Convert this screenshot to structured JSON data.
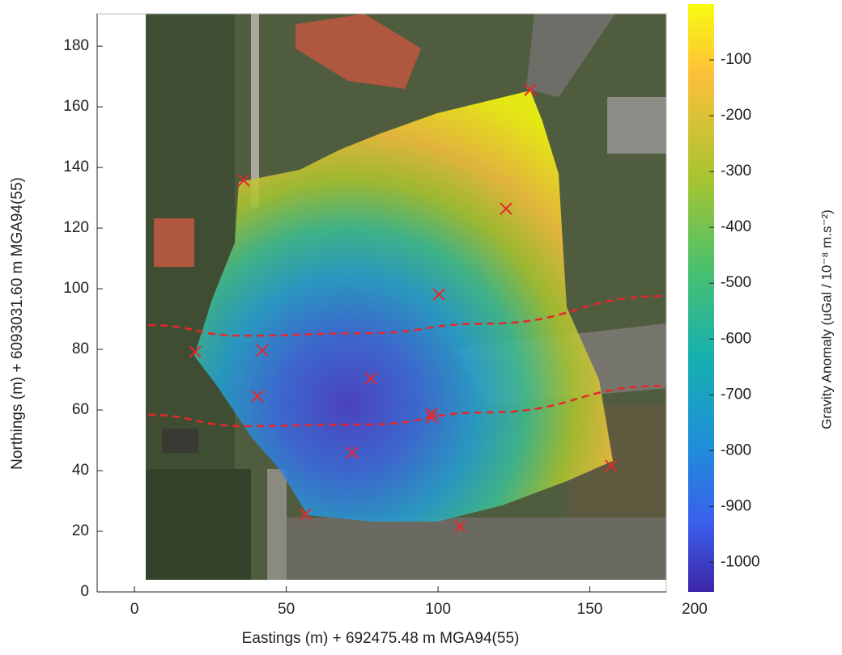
{
  "chart_data": {
    "type": "scatter",
    "xlabel": "Eastings (m) + 692475.48 m MGA94(55)",
    "ylabel": "Northings (m) + 6093031.60 m MGA94(55)",
    "xlim": [
      -12.3,
      175.2
    ],
    "ylim": [
      0,
      190.7
    ],
    "xticks": [
      0,
      50,
      100,
      150,
      200
    ],
    "yticks": [
      0,
      20,
      40,
      60,
      80,
      100,
      120,
      140,
      160,
      180
    ],
    "series": [
      {
        "color": "#e8262b",
        "marker": "x",
        "x": [
          130.4,
          36,
          122.4,
          100.3,
          20,
          42.1,
          77.9,
          40.5,
          97.9,
          97.9,
          71.7,
          157,
          56.3,
          107.2
        ],
        "y": [
          165.6,
          135.7,
          126.4,
          98.1,
          79.2,
          79.7,
          70.4,
          64.5,
          58.9,
          57.6,
          45.9,
          41.6,
          25.6,
          21.6
        ]
      },
      {
        "color": "#e8262b",
        "line_style": "dashed",
        "x": [
          4.5,
          35.7,
          75.7,
          115.7,
          175.2
        ],
        "y": [
          88,
          84.5,
          85.3,
          88.5,
          97.6
        ]
      },
      {
        "color": "#e8262b",
        "line_style": "dashed",
        "x": [
          4.5,
          35.7,
          75.7,
          115.7,
          175.2
        ],
        "y": [
          58.4,
          54.7,
          55.2,
          59.2,
          68
        ]
      }
    ],
    "colorbar": {
      "label": "Gravity Anomaly (uGal / 10⁻⁸ m.s⁻²)",
      "clim": [
        -1053,
        0
      ],
      "ticks": [
        -100,
        -200,
        -300,
        -400,
        -500,
        -600,
        -700,
        -800,
        -900,
        -1000
      ]
    }
  }
}
